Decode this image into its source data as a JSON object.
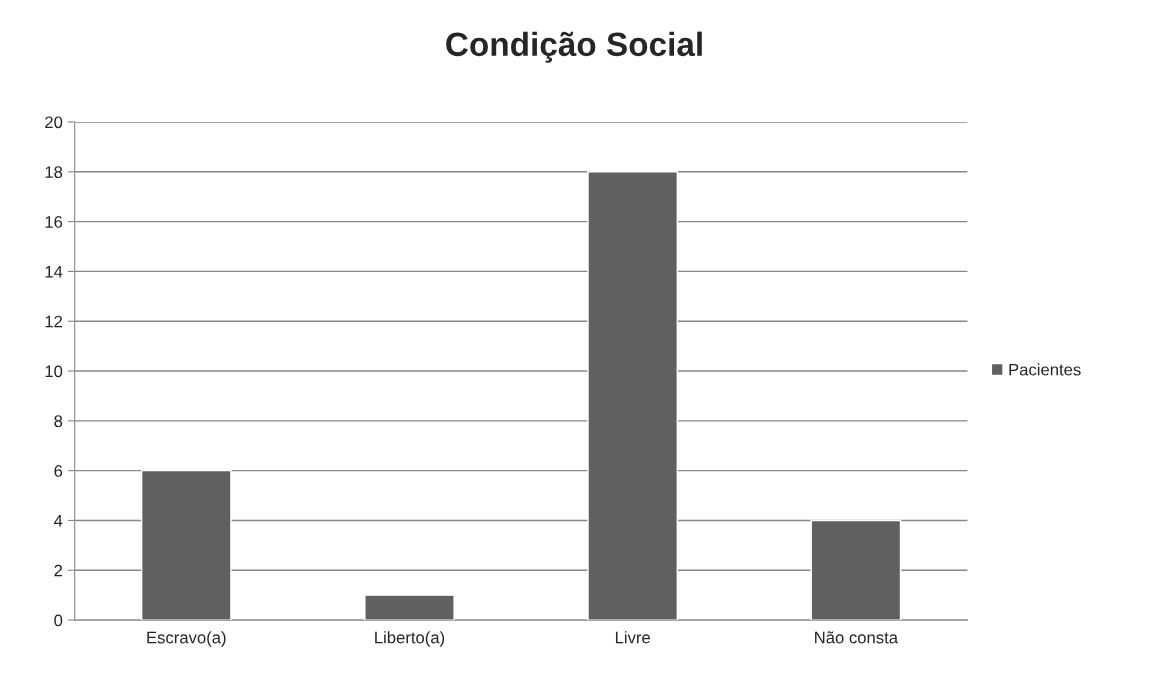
{
  "chart_data": {
    "type": "bar",
    "title": "Condição Social",
    "categories": [
      "Escravo(a)",
      "Liberto(a)",
      "Livre",
      "Não consta"
    ],
    "series": [
      {
        "name": "Pacientes",
        "color": "#606060",
        "values": [
          6,
          1,
          18,
          4
        ]
      }
    ],
    "ylim": [
      0,
      20
    ],
    "yticks": [
      0,
      2,
      4,
      6,
      8,
      10,
      12,
      14,
      16,
      18,
      20
    ],
    "grid": "y",
    "legend": "right"
  }
}
